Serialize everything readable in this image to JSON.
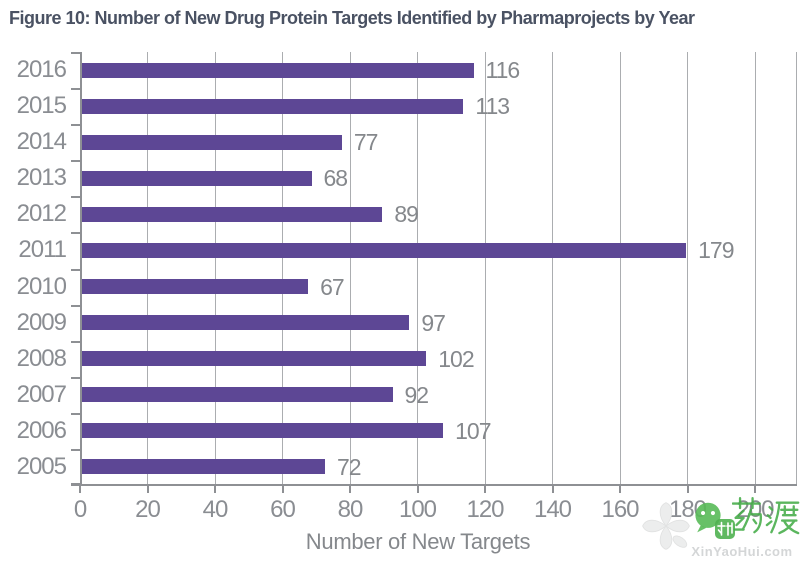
{
  "figure": {
    "title": "Figure 10: Number of New Drug Protein Targets Identified by Pharmaprojects by Year"
  },
  "chart_data": {
    "type": "bar",
    "orientation": "horizontal",
    "title": "Figure 10: Number of New Drug Protein Targets Identified by Pharmaprojects by Year",
    "categories": [
      "2016",
      "2015",
      "2014",
      "2013",
      "2012",
      "2011",
      "2010",
      "2009",
      "2008",
      "2007",
      "2006",
      "2005"
    ],
    "values": [
      116,
      113,
      77,
      68,
      89,
      179,
      67,
      97,
      102,
      92,
      107,
      72
    ],
    "xlabel": "Number of New Targets",
    "ylabel": "",
    "xlim": [
      0,
      200
    ],
    "xticks": [
      0,
      20,
      40,
      60,
      80,
      100,
      120,
      140,
      160,
      180,
      200
    ],
    "grid": true,
    "legend": "none",
    "bar_color": "#5d4795",
    "grid_color": "#abadb0",
    "axis_color": "#8e9094",
    "tick_label_color": "#8a8d92",
    "value_label_color": "#85888c",
    "title_color": "#4a5263"
  },
  "watermark": {
    "cn_text": "药渡",
    "url_text": "XinYaoHui.com",
    "green": "#4bb04d",
    "icons": [
      "clover-flower-icon",
      "wechat-bubble-icon",
      "new-badge-icon"
    ]
  }
}
